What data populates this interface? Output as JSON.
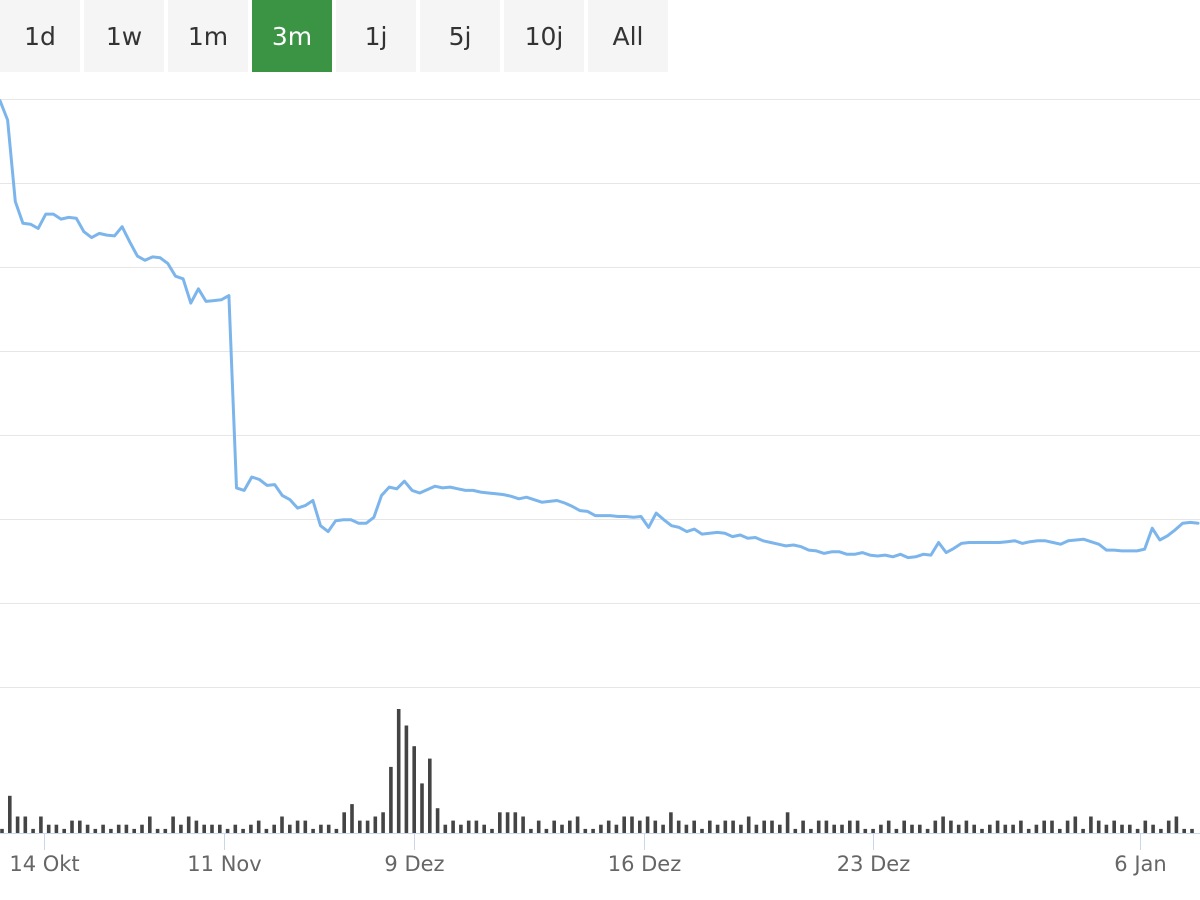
{
  "range_selector": {
    "buttons": [
      "1d",
      "1w",
      "1m",
      "3m",
      "1j",
      "5j",
      "10j",
      "All"
    ],
    "active": "3m",
    "active_color": "#3a9444"
  },
  "chart_data": [
    {
      "type": "line",
      "title": "",
      "xlabel": "",
      "ylabel": "",
      "x_axis": {
        "range": [
          "2024-10-12",
          "2025-01-08"
        ],
        "tick_labels": [
          "14 Okt",
          "11 Nov",
          "9 Dez",
          "16 Dez",
          "23 Dez",
          "6 Jan"
        ]
      },
      "y_axis": {
        "tick_labels": [],
        "gridlines": 8
      },
      "series": [
        {
          "color": "#7cb5ec",
          "values": [
            6.98,
            6.75,
            5.78,
            5.52,
            5.51,
            5.46,
            5.63,
            5.63,
            5.57,
            5.59,
            5.58,
            5.42,
            5.35,
            5.4,
            5.38,
            5.37,
            5.48,
            5.3,
            5.13,
            5.08,
            5.12,
            5.11,
            5.04,
            4.89,
            4.86,
            4.57,
            4.74,
            4.59,
            4.6,
            4.61,
            4.66,
            2.37,
            2.34,
            2.5,
            2.47,
            2.4,
            2.41,
            2.28,
            2.23,
            2.13,
            2.16,
            2.22,
            1.92,
            1.85,
            1.98,
            1.99,
            1.99,
            1.95,
            1.95,
            2.02,
            2.28,
            2.38,
            2.36,
            2.45,
            2.34,
            2.31,
            2.35,
            2.39,
            2.37,
            2.38,
            2.36,
            2.34,
            2.34,
            2.32,
            2.31,
            2.3,
            2.29,
            2.27,
            2.24,
            2.26,
            2.23,
            2.2,
            2.21,
            2.22,
            2.19,
            2.15,
            2.1,
            2.09,
            2.04,
            2.04,
            2.04,
            2.03,
            2.03,
            2.02,
            2.03,
            1.9,
            2.07,
            1.99,
            1.92,
            1.9,
            1.85,
            1.88,
            1.82,
            1.83,
            1.84,
            1.83,
            1.79,
            1.81,
            1.77,
            1.78,
            1.74,
            1.72,
            1.7,
            1.68,
            1.69,
            1.67,
            1.63,
            1.62,
            1.59,
            1.61,
            1.61,
            1.58,
            1.58,
            1.6,
            1.57,
            1.56,
            1.57,
            1.55,
            1.58,
            1.54,
            1.55,
            1.58,
            1.57,
            1.72,
            1.6,
            1.65,
            1.71,
            1.72,
            1.72,
            1.72,
            1.72,
            1.72,
            1.73,
            1.74,
            1.71,
            1.73,
            1.74,
            1.74,
            1.72,
            1.7,
            1.74,
            1.75,
            1.76,
            1.73,
            1.7,
            1.63,
            1.63,
            1.62,
            1.62,
            1.62,
            1.64,
            1.89,
            1.75,
            1.8,
            1.87,
            1.95,
            1.96,
            1.95
          ]
        }
      ]
    },
    {
      "type": "bar",
      "title": "",
      "xlabel": "",
      "ylabel": "",
      "color": "#444444",
      "values": [
        1,
        9,
        4,
        4,
        1,
        4,
        2,
        2,
        1,
        3,
        3,
        2,
        1,
        2,
        1,
        2,
        2,
        1,
        2,
        4,
        1,
        1,
        4,
        2,
        4,
        3,
        2,
        2,
        2,
        1,
        2,
        1,
        2,
        3,
        1,
        2,
        4,
        2,
        3,
        3,
        1,
        2,
        2,
        1,
        5,
        7,
        3,
        3,
        4,
        5,
        16,
        30,
        26,
        21,
        12,
        18,
        6,
        2,
        3,
        2,
        3,
        3,
        2,
        1,
        5,
        5,
        5,
        4,
        1,
        3,
        1,
        3,
        2,
        3,
        4,
        1,
        1,
        2,
        3,
        2,
        4,
        4,
        3,
        4,
        3,
        2,
        5,
        3,
        2,
        3,
        1,
        3,
        2,
        3,
        3,
        2,
        4,
        2,
        3,
        3,
        2,
        5,
        1,
        3,
        1,
        3,
        3,
        2,
        2,
        3,
        3,
        1,
        1,
        2,
        3,
        1,
        3,
        2,
        2,
        1,
        3,
        4,
        3,
        2,
        3,
        2,
        1,
        2,
        3,
        2,
        2,
        3,
        1,
        2,
        3,
        3,
        1,
        3,
        4,
        1,
        4,
        3,
        2,
        3,
        2,
        2,
        1,
        3,
        2,
        1,
        3,
        4,
        1,
        1
      ]
    }
  ]
}
